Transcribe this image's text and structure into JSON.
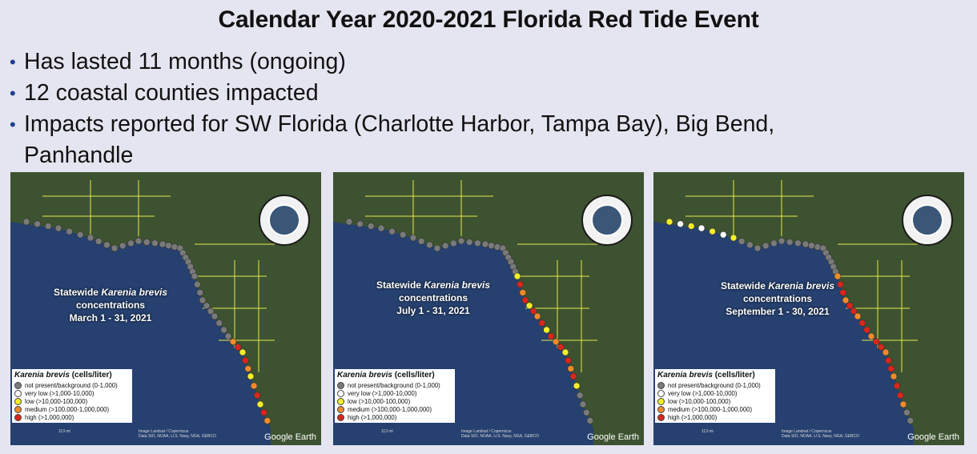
{
  "title": "Calendar Year 2020-2021 Florida Red Tide Event",
  "bullets": [
    "Has lasted 11 months (ongoing)",
    "12 coastal counties impacted",
    "Impacts reported for SW Florida (Charlotte Harbor, Tampa Bay), Big Bend,",
    "Panhandle"
  ],
  "map_common": {
    "title_prefix": "Statewide",
    "species": "Karenia brevis",
    "concentrations": "concentrations",
    "legend_title": "(cells/liter)",
    "legend_items": [
      {
        "label": "not present/background (0-1,000)",
        "color": "#7a7a7a"
      },
      {
        "label": "very low (>1,000-10,000)",
        "color": "#ffffff"
      },
      {
        "label": "low (>10,000-100,000)",
        "color": "#f4ef2a"
      },
      {
        "label": "medium (>100,000-1,000,000)",
        "color": "#f08a2a"
      },
      {
        "label": "high (>1,000,000)",
        "color": "#d9261c"
      }
    ],
    "google_earth": "Google Earth",
    "attribution": "Data SIO, NOAA, U.S. Navy, NGA, GEBCO",
    "image_credit": "Image Landsat / Copernicus",
    "scale": "113 mi"
  },
  "maps": [
    {
      "date": "March 1 - 31, 2021"
    },
    {
      "date": "July 1 - 31, 2021"
    },
    {
      "date": "September 1 - 30, 2021"
    }
  ]
}
